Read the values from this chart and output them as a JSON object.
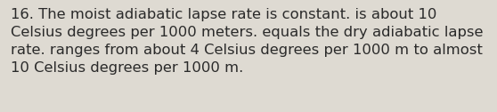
{
  "text": "16. The moist adiabatic lapse rate is constant. is about 10\nCelsius degrees per 1000 meters. equals the dry adiabatic lapse\nrate. ranges from about 4 Celsius degrees per 1000 m to almost\n10 Celsius degrees per 1000 m.",
  "background_color": "#dedad2",
  "text_color": "#2a2a2a",
  "font_size": 11.8,
  "font_family": "DejaVu Sans"
}
